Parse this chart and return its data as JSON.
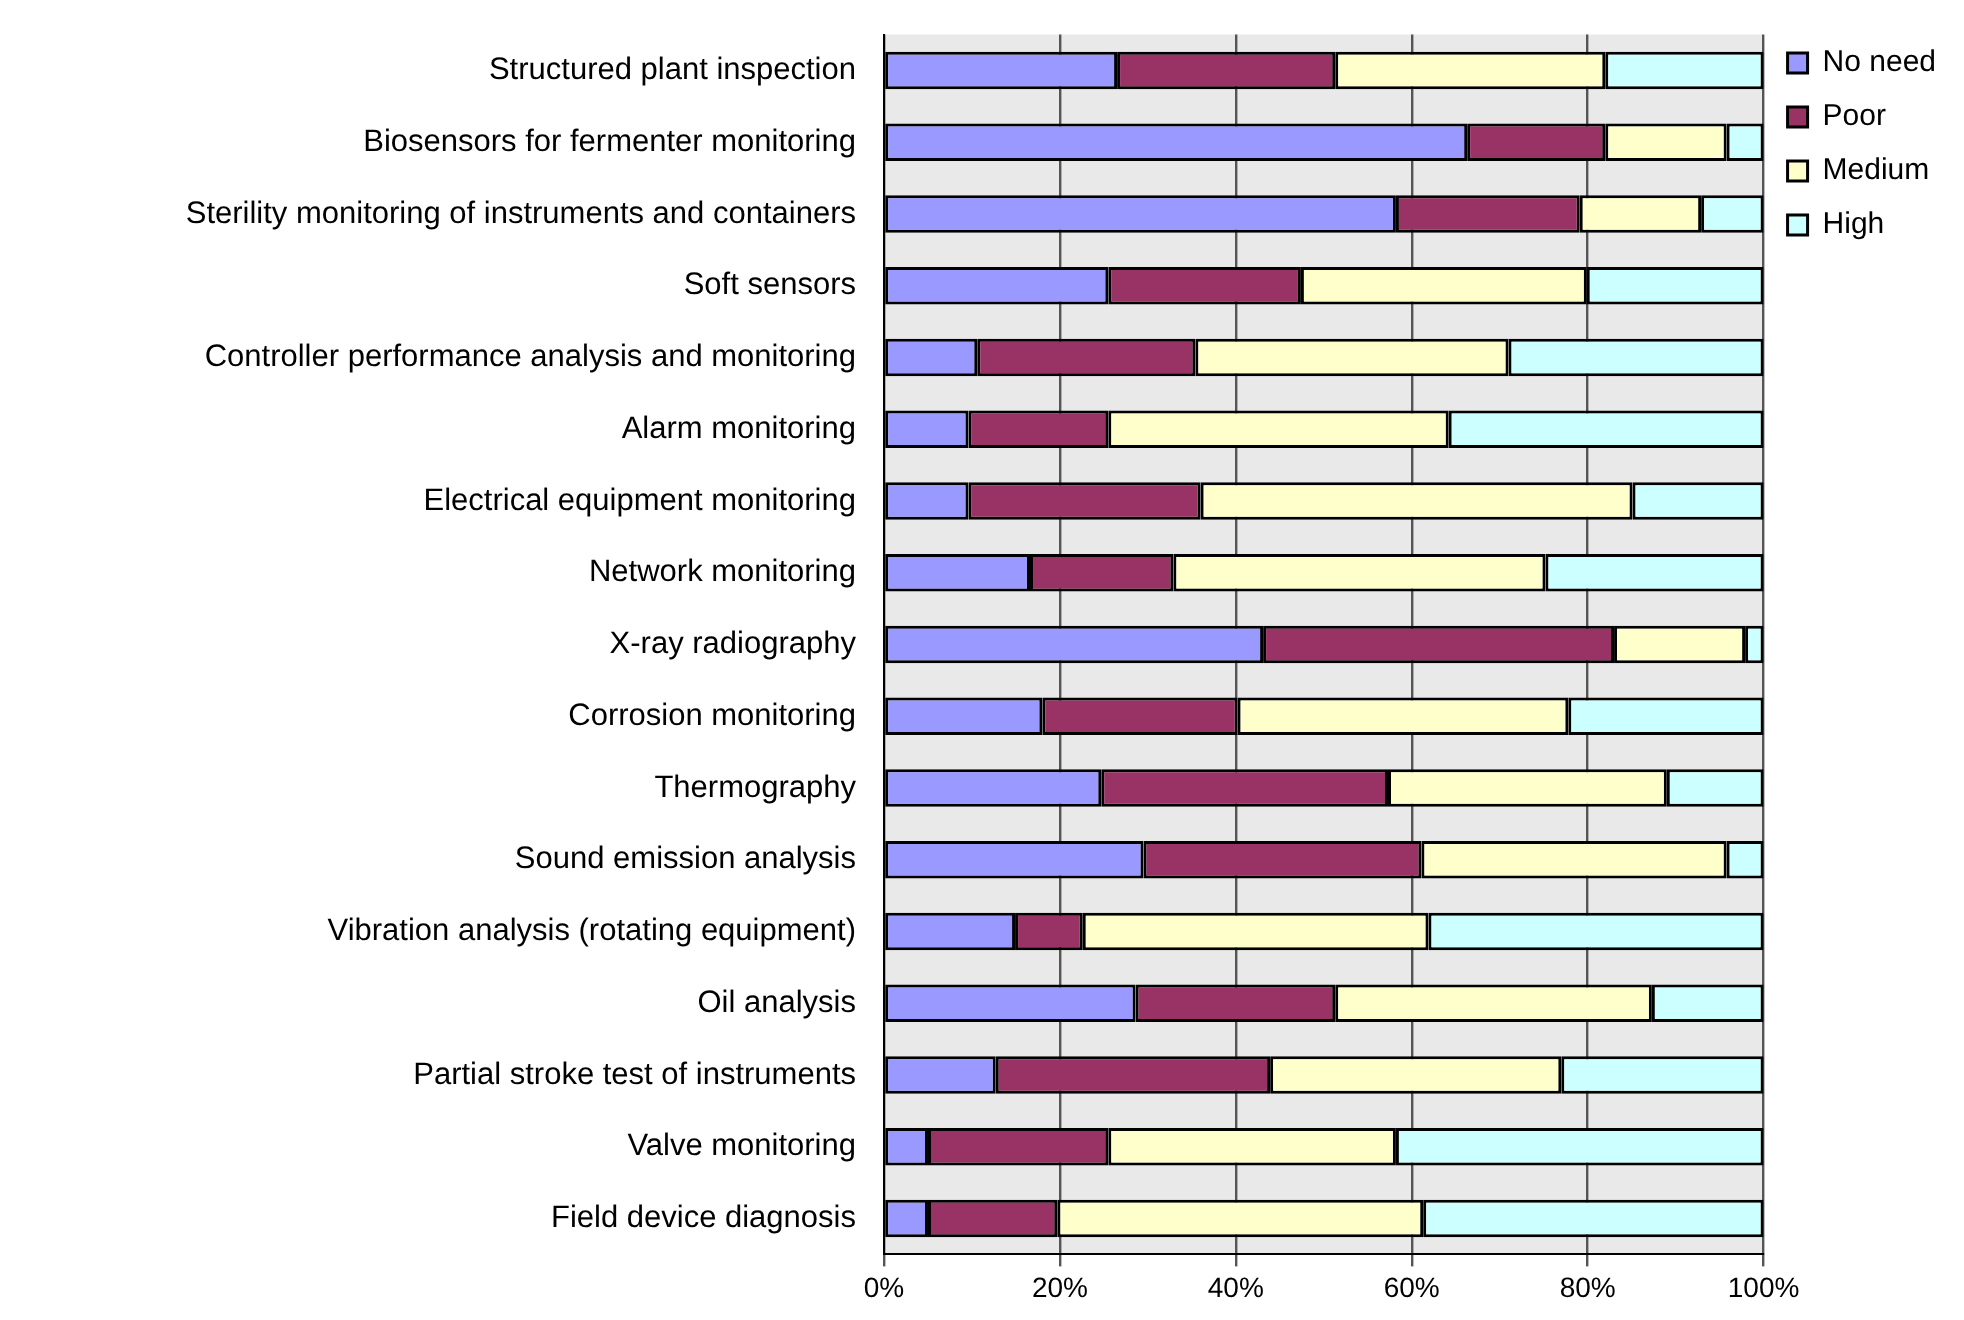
{
  "chart_data": {
    "type": "bar",
    "orientation": "horizontal",
    "stacked": true,
    "categories": [
      "Structured plant inspection",
      "Biosensors for fermenter monitoring",
      "Sterility monitoring of instruments and containers",
      "Soft sensors",
      "Controller performance analysis and monitoring",
      "Alarm monitoring",
      "Electrical equipment monitoring",
      "Network monitoring",
      "X-ray radiography",
      "Corrosion monitoring",
      "Thermography",
      "Sound emission analysis",
      "Vibration analysis (rotating equipment)",
      "Oil analysis",
      "Partial stroke test of instruments",
      "Valve monitoring",
      "Field device diagnosis"
    ],
    "series": [
      {
        "name": "No need",
        "color": "#9999ff",
        "values": [
          26.5,
          66.3,
          58.2,
          25.5,
          10.6,
          9.6,
          9.6,
          16.6,
          43.1,
          18.0,
          24.7,
          29.5,
          14.9,
          28.6,
          12.7,
          5.0,
          5.0
        ]
      },
      {
        "name": "Poor",
        "color": "#993366",
        "values": [
          24.8,
          15.7,
          20.9,
          21.9,
          24.8,
          15.9,
          26.4,
          16.3,
          39.9,
          22.2,
          32.6,
          31.6,
          7.7,
          22.7,
          31.2,
          20.5,
          14.7
        ]
      },
      {
        "name": "Medium",
        "color": "#ffffcc",
        "values": [
          30.7,
          13.8,
          13.8,
          32.5,
          35.6,
          38.7,
          49.1,
          42.3,
          14.9,
          37.6,
          31.7,
          34.7,
          39.3,
          36.0,
          33.1,
          32.7,
          41.6
        ]
      },
      {
        "name": "High",
        "color": "#ccffff",
        "values": [
          18.0,
          4.2,
          7.1,
          20.1,
          29.0,
          35.8,
          14.9,
          24.8,
          2.1,
          22.2,
          11.0,
          4.2,
          38.1,
          12.7,
          23.0,
          41.8,
          38.7
        ]
      }
    ],
    "xlim": [
      0,
      100
    ],
    "xticks": [
      {
        "value": 0,
        "label": "0%"
      },
      {
        "value": 20,
        "label": "20%"
      },
      {
        "value": 40,
        "label": "40%"
      },
      {
        "value": 60,
        "label": "60%"
      },
      {
        "value": 80,
        "label": "80%"
      },
      {
        "value": 100,
        "label": "100%"
      }
    ],
    "grid": "x",
    "legend": "top right"
  }
}
